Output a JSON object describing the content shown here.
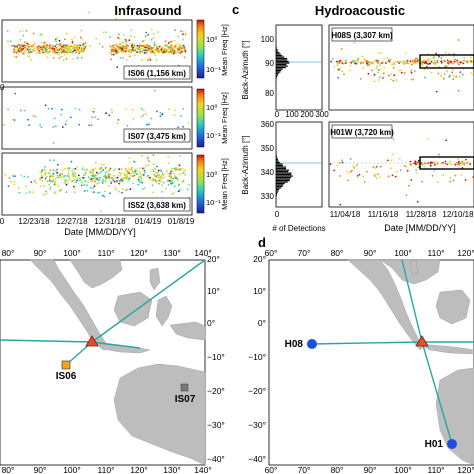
{
  "panel_titles": {
    "left": "Infrasound",
    "right": "Hydroacoustic",
    "c": "c",
    "d": "d"
  },
  "colorbar": {
    "label": "Mean Freq [Hz]",
    "ticks": [
      "10⁰",
      "10⁻¹"
    ]
  },
  "infrasound": {
    "stations": [
      {
        "label": "IS06 (1,156 km)"
      },
      {
        "label": "IS07 (3,475 km)"
      },
      {
        "label": "IS52 (3,638 km)"
      }
    ],
    "x_ticks": [
      "0",
      "12/23/18",
      "12/27/18",
      "12/31/18",
      "01/4/19",
      "01/8/19"
    ],
    "x_label": "Date [MM/DD/YY]",
    "side_tick": "0"
  },
  "hydro": {
    "panels": [
      {
        "label": "H08S (3,307 km)",
        "y_ticks": [
          "100",
          "90",
          "80"
        ]
      },
      {
        "label": "H01W (3,720 km)",
        "y_ticks": [
          "360",
          "350",
          "340",
          "330"
        ]
      }
    ],
    "y_label": "Back-Azimuth [°]",
    "hist_ticks": [
      "0",
      "100",
      "200",
      "300"
    ],
    "hist_xlabel": "# of Detections",
    "x_ticks": [
      "11/04/18",
      "11/16/18",
      "11/28/18",
      "12/10/18"
    ],
    "x_label": "Date [MM/DD/YY]"
  },
  "map_left": {
    "top_ticks": [
      "80°",
      "90°",
      "100°",
      "110°",
      "120°",
      "130°",
      "140°"
    ],
    "bottom_ticks": [
      "80°",
      "90°",
      "100°",
      "110°",
      "120°",
      "130°",
      "140°"
    ],
    "right_ticks": [
      "20°",
      "10°",
      "0°",
      "−10°",
      "−20°",
      "−30°",
      "−40°"
    ],
    "stations": [
      "IS06",
      "IS07"
    ]
  },
  "map_right": {
    "top_ticks": [
      "60°",
      "70°",
      "80°",
      "90°",
      "100°",
      "110°",
      "120°"
    ],
    "bottom_ticks": [
      "60°",
      "70°",
      "80°",
      "90°",
      "100°",
      "110°",
      "120°"
    ],
    "left_ticks": [
      "20°",
      "10°",
      "0°",
      "−10°",
      "−20°",
      "−30°",
      "−40°"
    ],
    "stations": [
      "H08",
      "H01"
    ]
  },
  "chart_data": [
    {
      "type": "scatter",
      "title": "Infrasound",
      "xlabel": "Date [MM/DD/YY]",
      "x_tick_labels": [
        "12/23/18",
        "12/27/18",
        "12/31/18",
        "01/4/19",
        "01/8/19"
      ],
      "panels": [
        "IS06 (1,156 km)",
        "IS07 (3,475 km)",
        "IS52 (3,638 km)"
      ],
      "colorbar": {
        "label": "Mean Freq [Hz]",
        "scale": "log",
        "range_hz": [
          0.03,
          3
        ]
      }
    },
    {
      "type": "scatter",
      "title": "Hydroacoustic",
      "xlabel": "Date [MM/DD/YY]",
      "ylabel": "Back-Azimuth [°]",
      "x_tick_labels": [
        "11/04/18",
        "11/16/18",
        "11/28/18",
        "12/10/18"
      ],
      "series": [
        {
          "name": "H08S (3,307 km)",
          "ylim": [
            78,
            102
          ],
          "dominant_back_azimuth": 91
        },
        {
          "name": "H01W (3,720 km)",
          "ylim": [
            325,
            362
          ],
          "dominant_back_azimuth": 342
        }
      ],
      "histogram": {
        "xlabel": "# of Detections",
        "xlim": [
          0,
          300
        ]
      }
    },
    {
      "type": "map",
      "panels": [
        {
          "lon_range": [
            75,
            140
          ],
          "lat_range": [
            -40,
            20
          ],
          "stations": [
            "IS06",
            "IS07"
          ]
        },
        {
          "lon_range": [
            60,
            125
          ],
          "lat_range": [
            -40,
            20
          ],
          "stations": [
            "H08",
            "H01"
          ]
        }
      ]
    }
  ]
}
